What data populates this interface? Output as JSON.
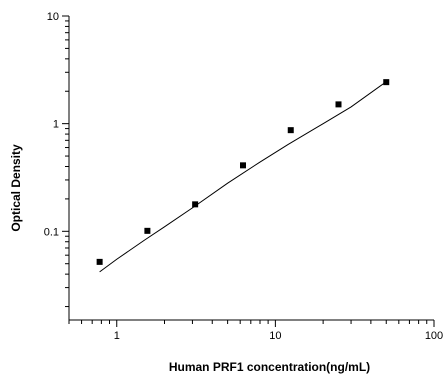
{
  "chart_data": {
    "type": "scatter",
    "title": "",
    "xlabel": "Human PRF1 concentration(ng/mL)",
    "ylabel": "Optical Density",
    "x_scale": "log",
    "y_scale": "log",
    "xlim": [
      0.5,
      100
    ],
    "ylim": [
      0.015,
      10
    ],
    "x_ticks": [
      {
        "value": 1,
        "label": "1"
      },
      {
        "value": 10,
        "label": "10"
      },
      {
        "value": 100,
        "label": "100"
      }
    ],
    "y_ticks": [
      {
        "value": 0.1,
        "label": "0.1"
      },
      {
        "value": 1,
        "label": "1"
      },
      {
        "value": 10,
        "label": "10"
      }
    ],
    "grid": false,
    "legend": "none",
    "series": [
      {
        "x": [
          0.78,
          1.56,
          3.12,
          6.25,
          12.5,
          25,
          50
        ],
        "y": [
          0.052,
          0.101,
          0.178,
          0.41,
          0.87,
          1.51,
          2.43
        ],
        "marker": "square",
        "color": "#000000"
      }
    ],
    "fit_curve": {
      "x": [
        0.78,
        1.0,
        1.5,
        2.0,
        3.0,
        5.0,
        8.0,
        12.0,
        20.0,
        30.0,
        50.0
      ],
      "y": [
        0.042,
        0.055,
        0.083,
        0.11,
        0.165,
        0.28,
        0.44,
        0.64,
        1.0,
        1.43,
        2.45
      ],
      "color": "#000000"
    }
  }
}
